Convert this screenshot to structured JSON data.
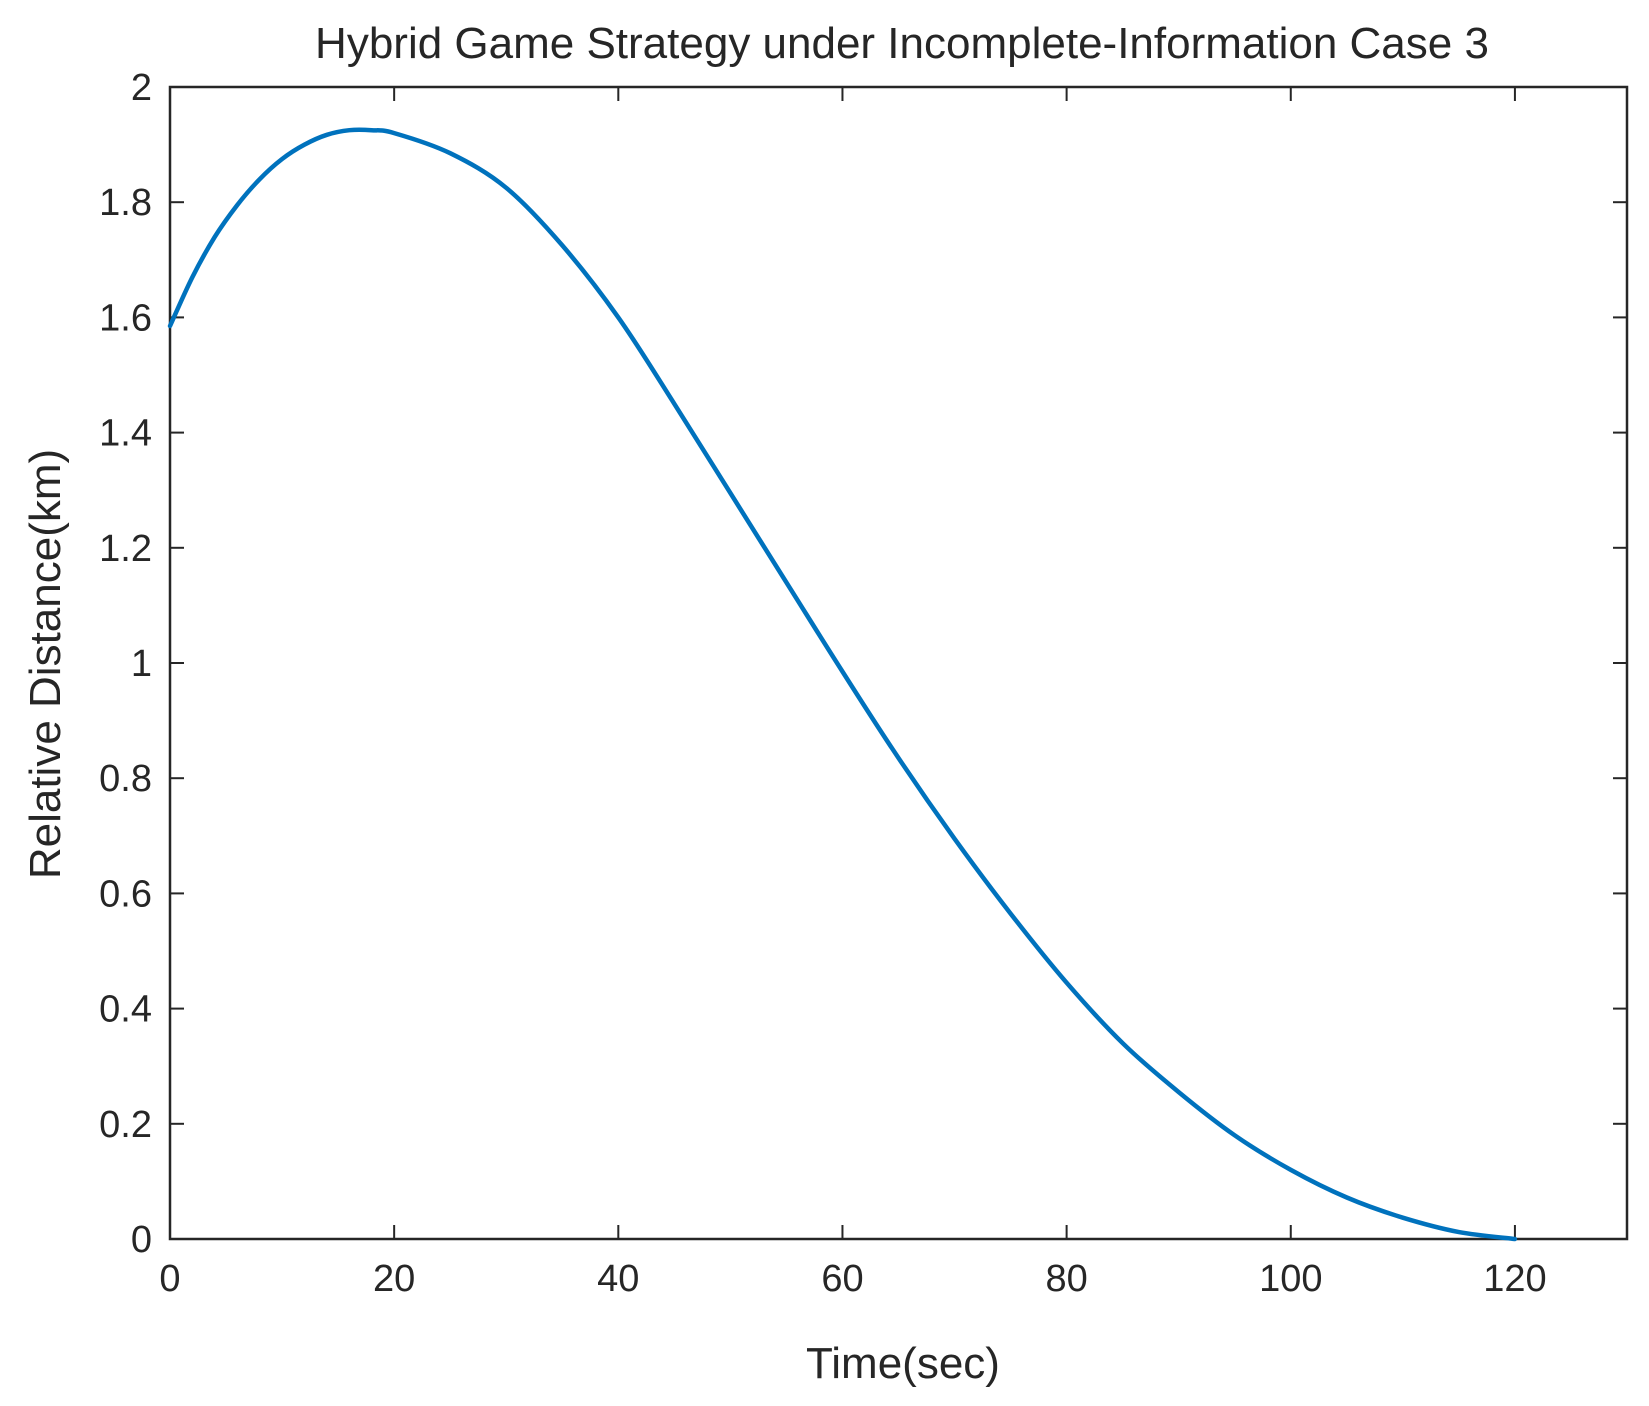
{
  "chart_data": {
    "type": "line",
    "title": "Hybrid Game Strategy under Incomplete-Information Case 3",
    "xlabel": "Time(sec)",
    "ylabel": "Relative Distance(km)",
    "xlim": [
      0,
      130
    ],
    "ylim": [
      0,
      2
    ],
    "xticks": [
      0,
      20,
      40,
      60,
      80,
      100,
      120
    ],
    "xtick_labels": [
      "0",
      "20",
      "40",
      "60",
      "80",
      "100",
      "120"
    ],
    "yticks": [
      0,
      0.2,
      0.4,
      0.6,
      0.8,
      1,
      1.2,
      1.4,
      1.6,
      1.8,
      2
    ],
    "ytick_labels": [
      "0",
      "0.2",
      "0.4",
      "0.6",
      "0.8",
      "1",
      "1.2",
      "1.4",
      "1.6",
      "1.8",
      "2"
    ],
    "grid": false,
    "series": [
      {
        "color": "#0072BD",
        "x": [
          0,
          2,
          4,
          6,
          8,
          10,
          12,
          14,
          16,
          18,
          20,
          25,
          30,
          35,
          40,
          45,
          50,
          55,
          60,
          65,
          70,
          75,
          80,
          85,
          90,
          95,
          100,
          105,
          110,
          115,
          120
        ],
        "y": [
          1.585,
          1.67,
          1.74,
          1.795,
          1.84,
          1.875,
          1.9,
          1.917,
          1.925,
          1.925,
          1.92,
          1.885,
          1.825,
          1.725,
          1.6,
          1.45,
          1.295,
          1.14,
          0.985,
          0.835,
          0.695,
          0.565,
          0.445,
          0.34,
          0.255,
          0.18,
          0.12,
          0.072,
          0.037,
          0.012,
          0
        ]
      }
    ]
  }
}
